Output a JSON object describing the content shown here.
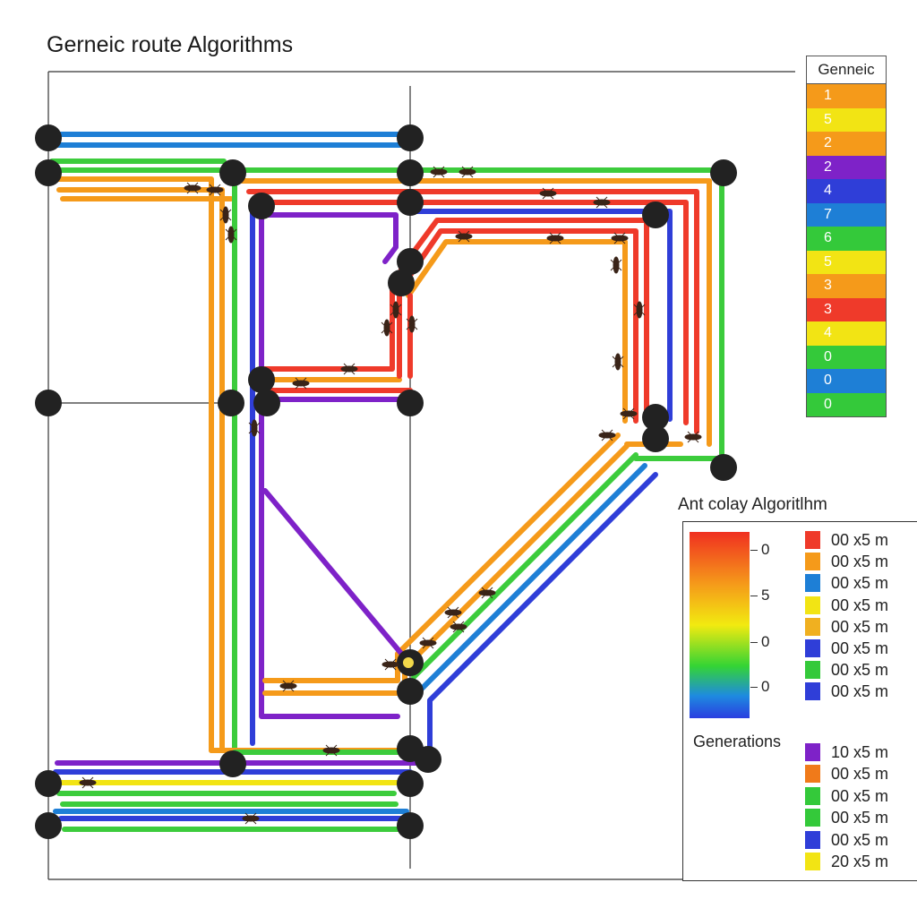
{
  "title": "Gerneic route Algorithms",
  "generic_legend": {
    "header": "Genneic",
    "rows": [
      {
        "label": "1",
        "color": "#f59a1a"
      },
      {
        "label": "5",
        "color": "#f2e414"
      },
      {
        "label": "2",
        "color": "#f59a1a"
      },
      {
        "label": "2",
        "color": "#7e22c8"
      },
      {
        "label": "4",
        "color": "#2f3ed8"
      },
      {
        "label": "7",
        "color": "#1e7fd6"
      },
      {
        "label": "6",
        "color": "#34c93a"
      },
      {
        "label": "5",
        "color": "#f2e414"
      },
      {
        "label": "3",
        "color": "#f59a1a"
      },
      {
        "label": "3",
        "color": "#ef3a2a"
      },
      {
        "label": "4",
        "color": "#f2e414"
      },
      {
        "label": "0",
        "color": "#34c93a"
      },
      {
        "label": "0",
        "color": "#1e7fd6"
      },
      {
        "label": "0",
        "color": "#34c93a"
      }
    ]
  },
  "aco_panel": {
    "title": "Ant colay Algoritlhm",
    "colorbar_labels": [
      "0",
      "5",
      "0",
      "0"
    ],
    "legend": [
      {
        "label": "00 x5 m",
        "color": "#ef3a2a"
      },
      {
        "label": "00 x5 m",
        "color": "#f59a1a"
      },
      {
        "label": "00 x5 m",
        "color": "#1e7fd6"
      },
      {
        "label": "00 x5 m",
        "color": "#f2e414"
      },
      {
        "label": "00 x5 m",
        "color": "#f0b020"
      },
      {
        "label": "00 x5 m",
        "color": "#2f3ed8"
      },
      {
        "label": "00 x5 m",
        "color": "#34c93a"
      },
      {
        "label": "00 x5 m",
        "color": "#2f3ed8"
      }
    ],
    "generations_title": "Generations",
    "generations": [
      {
        "label": "10 x5 m",
        "color": "#7e22c8"
      },
      {
        "label": "00 x5 m",
        "color": "#f07a1a"
      },
      {
        "label": "00 x5 m",
        "color": "#34c93a"
      },
      {
        "label": "00 x5 m",
        "color": "#34c93a"
      },
      {
        "label": "00 x5 m",
        "color": "#2f3ed8"
      },
      {
        "label": "20 x5 m",
        "color": "#f2e414"
      }
    ]
  },
  "colors": {
    "orange": "#f59a1a",
    "green": "#3ccc3c",
    "blue": "#1e7fd6",
    "purple": "#7e22c8",
    "red": "#ef3a2a",
    "navy": "#2f3ed8",
    "yellow": "#f2e414",
    "node": "#222222",
    "ant": "#3a2418"
  }
}
